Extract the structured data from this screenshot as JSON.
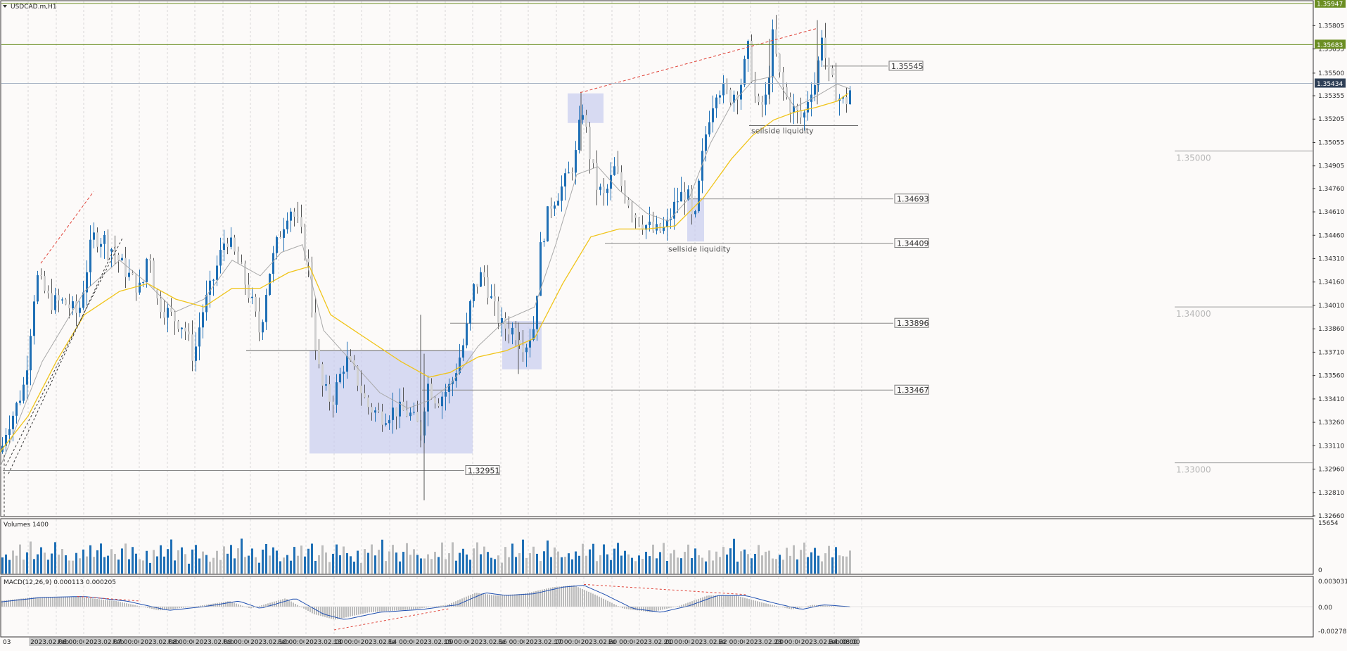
{
  "chart_data": [
    {
      "type": "candlestick",
      "symbol_label": "USDCAD.m,H1",
      "ylim": [
        1.3266,
        1.3596
      ],
      "y_ticks": [
        "1.35805",
        "1.35655",
        "1.35500",
        "1.35355",
        "1.35205",
        "1.35055",
        "1.34905",
        "1.34760",
        "1.34610",
        "1.34460",
        "1.34310",
        "1.34160",
        "1.34010",
        "1.33860",
        "1.33710",
        "1.33560",
        "1.33410",
        "1.33260",
        "1.33110",
        "1.32960",
        "1.32810",
        "1.32660"
      ],
      "x_dates": [
        "03",
        "2023.02.06 00:00",
        "Feb",
        "2023.02.07 00:00",
        "Feb",
        "2023.02.08 00:00",
        "Feb",
        "2023.02.09 00:00",
        "Feb",
        "2023.02.10 00:00",
        "Feb",
        "2023.02.13 00:00",
        ":00",
        "2023.02.14 00:00",
        "Fe",
        "2023.02.15 00:00",
        ":00",
        "2023.02.16 00:00",
        "Fe",
        "2023.02.17 00:00",
        ":00",
        "2023.02.20 00:00",
        "Fe",
        "2023.02.21 00:00",
        ":00",
        "2023.02.22 00:00",
        "Fe",
        "2023.02.23 00:00",
        ":00",
        "2023.02.24 00:00",
        "Feb 08:00"
      ],
      "price_path": [
        [
          0,
          1.3307
        ],
        [
          8,
          1.3323
        ],
        [
          20,
          1.3334
        ],
        [
          34,
          1.3352
        ],
        [
          50,
          1.342
        ],
        [
          70,
          1.3403
        ],
        [
          90,
          1.3403
        ],
        [
          110,
          1.3395
        ],
        [
          130,
          1.3445
        ],
        [
          150,
          1.3443
        ],
        [
          170,
          1.3428
        ],
        [
          185,
          1.3418
        ],
        [
          200,
          1.341
        ],
        [
          210,
          1.344
        ],
        [
          220,
          1.3405
        ],
        [
          240,
          1.3395
        ],
        [
          260,
          1.3388
        ],
        [
          274,
          1.3367
        ],
        [
          285,
          1.3395
        ],
        [
          300,
          1.3415
        ],
        [
          320,
          1.3446
        ],
        [
          340,
          1.3425
        ],
        [
          355,
          1.3405
        ],
        [
          368,
          1.3383
        ],
        [
          380,
          1.342
        ],
        [
          395,
          1.3445
        ],
        [
          410,
          1.3465
        ],
        [
          425,
          1.345
        ],
        [
          437,
          1.3426
        ],
        [
          445,
          1.3383
        ],
        [
          455,
          1.335
        ],
        [
          470,
          1.3339
        ],
        [
          490,
          1.3367
        ],
        [
          505,
          1.3355
        ],
        [
          520,
          1.3337
        ],
        [
          540,
          1.333
        ],
        [
          560,
          1.3334
        ],
        [
          580,
          1.3332
        ],
        [
          598,
          1.332
        ],
        [
          605,
          1.3352
        ],
        [
          620,
          1.334
        ],
        [
          640,
          1.335
        ],
        [
          660,
          1.338
        ],
        [
          670,
          1.341
        ],
        [
          685,
          1.3422
        ],
        [
          700,
          1.34
        ],
        [
          712,
          1.3388
        ],
        [
          730,
          1.3385
        ],
        [
          745,
          1.3375
        ],
        [
          758,
          1.3388
        ],
        [
          766,
          1.3435
        ],
        [
          780,
          1.3465
        ],
        [
          795,
          1.3475
        ],
        [
          808,
          1.3485
        ],
        [
          818,
          1.3499
        ],
        [
          826,
          1.353
        ],
        [
          836,
          1.35
        ],
        [
          846,
          1.3478
        ],
        [
          858,
          1.347
        ],
        [
          872,
          1.3488
        ],
        [
          885,
          1.3475
        ],
        [
          900,
          1.346
        ],
        [
          915,
          1.3453
        ],
        [
          930,
          1.3448
        ],
        [
          945,
          1.345
        ],
        [
          960,
          1.3468
        ],
        [
          975,
          1.3475
        ],
        [
          985,
          1.3448
        ],
        [
          995,
          1.349
        ],
        [
          1005,
          1.352
        ],
        [
          1018,
          1.3542
        ],
        [
          1035,
          1.3535
        ],
        [
          1050,
          1.354
        ],
        [
          1062,
          1.3565
        ],
        [
          1075,
          1.3525
        ],
        [
          1090,
          1.3535
        ],
        [
          1095,
          1.3578
        ],
        [
          1108,
          1.3545
        ],
        [
          1120,
          1.353
        ],
        [
          1140,
          1.352
        ],
        [
          1150,
          1.354
        ],
        [
          1160,
          1.3545
        ],
        [
          1166,
          1.358
        ],
        [
          1175,
          1.355
        ],
        [
          1190,
          1.3535
        ],
        [
          1200,
          1.353
        ],
        [
          1210,
          1.3543
        ]
      ],
      "ma_fast_path": [
        [
          0,
          1.3297
        ],
        [
          60,
          1.3365
        ],
        [
          120,
          1.341
        ],
        [
          170,
          1.343
        ],
        [
          210,
          1.3415
        ],
        [
          250,
          1.3397
        ],
        [
          290,
          1.3405
        ],
        [
          330,
          1.343
        ],
        [
          370,
          1.342
        ],
        [
          400,
          1.3435
        ],
        [
          430,
          1.344
        ],
        [
          460,
          1.3385
        ],
        [
          500,
          1.3365
        ],
        [
          540,
          1.3345
        ],
        [
          580,
          1.3335
        ],
        [
          610,
          1.334
        ],
        [
          640,
          1.335
        ],
        [
          680,
          1.3375
        ],
        [
          720,
          1.3392
        ],
        [
          760,
          1.34
        ],
        [
          790,
          1.344
        ],
        [
          820,
          1.3485
        ],
        [
          850,
          1.349
        ],
        [
          880,
          1.3475
        ],
        [
          920,
          1.346
        ],
        [
          950,
          1.3455
        ],
        [
          980,
          1.347
        ],
        [
          1010,
          1.3505
        ],
        [
          1040,
          1.353
        ],
        [
          1070,
          1.3545
        ],
        [
          1100,
          1.3548
        ],
        [
          1130,
          1.3528
        ],
        [
          1160,
          1.3535
        ],
        [
          1190,
          1.3543
        ],
        [
          1208,
          1.354
        ]
      ],
      "ma_slow_path": [
        [
          0,
          1.3307
        ],
        [
          40,
          1.333
        ],
        [
          80,
          1.3365
        ],
        [
          120,
          1.3395
        ],
        [
          170,
          1.341
        ],
        [
          210,
          1.3415
        ],
        [
          250,
          1.3405
        ],
        [
          290,
          1.34
        ],
        [
          330,
          1.3412
        ],
        [
          370,
          1.3412
        ],
        [
          410,
          1.3422
        ],
        [
          440,
          1.3426
        ],
        [
          470,
          1.3395
        ],
        [
          520,
          1.338
        ],
        [
          570,
          1.3365
        ],
        [
          610,
          1.3355
        ],
        [
          640,
          1.3358
        ],
        [
          680,
          1.3368
        ],
        [
          720,
          1.3372
        ],
        [
          760,
          1.338
        ],
        [
          800,
          1.3415
        ],
        [
          840,
          1.3445
        ],
        [
          880,
          1.345
        ],
        [
          920,
          1.345
        ],
        [
          960,
          1.3452
        ],
        [
          1000,
          1.347
        ],
        [
          1040,
          1.3495
        ],
        [
          1070,
          1.351
        ],
        [
          1100,
          1.352
        ],
        [
          1130,
          1.3525
        ],
        [
          1160,
          1.3528
        ],
        [
          1190,
          1.3532
        ],
        [
          1206,
          1.3537
        ]
      ],
      "price_levels": [
        {
          "label": "1.35545",
          "value": 1.35545
        },
        {
          "label": "1.34693",
          "value": 1.34693
        },
        {
          "label": "1.34409",
          "value": 1.34409
        },
        {
          "label": "1.33896",
          "value": 1.33896
        },
        {
          "label": "1.33467",
          "value": 1.33467
        },
        {
          "label": "1.32951",
          "value": 1.32951
        }
      ],
      "right_axis_tags": [
        {
          "label": "1.35947",
          "value": 1.35947,
          "color": "#6b8e23"
        },
        {
          "label": "1.35683",
          "value": 1.35683,
          "color": "#6b8e23"
        },
        {
          "label": "1.35434",
          "value": 1.35434,
          "color": "#2f3f56"
        }
      ],
      "round_levels": [
        "1.35000",
        "1.34000",
        "1.33000"
      ],
      "annotations": [
        "sellside liquidity",
        "sellside liquidity"
      ],
      "colors": {
        "bull": "#1f6fb5",
        "bear": "#d0d0d0",
        "ma_fast": "#a8a8a8",
        "ma_slow": "#f0c419",
        "zone": "#c8ccf0",
        "trend": "#e0443a"
      }
    },
    {
      "type": "bar",
      "title": "Volumes 1400",
      "y_ticks": [
        "15654",
        "0"
      ],
      "volume_pattern": [
        6,
        9,
        5,
        11,
        8,
        13,
        7,
        10,
        15,
        6,
        9,
        12,
        8,
        5,
        10,
        14,
        7,
        11,
        9,
        6
      ]
    },
    {
      "type": "line",
      "title": "MACD(12,26,9) 0.000113 0.000205",
      "y_ticks": [
        "0.003031",
        "0.00",
        "-0.002787"
      ],
      "macd_path": [
        [
          0,
          0.0005
        ],
        [
          60,
          0.001
        ],
        [
          120,
          0.0011
        ],
        [
          180,
          0.0006
        ],
        [
          240,
          -0.0004
        ],
        [
          290,
          0.0
        ],
        [
          340,
          0.0006
        ],
        [
          370,
          -0.0002
        ],
        [
          420,
          0.0009
        ],
        [
          460,
          -0.0008
        ],
        [
          490,
          -0.0014
        ],
        [
          540,
          -0.0006
        ],
        [
          600,
          -0.0003
        ],
        [
          650,
          0.0002
        ],
        [
          690,
          0.0015
        ],
        [
          720,
          0.0012
        ],
        [
          760,
          0.0014
        ],
        [
          800,
          0.0021
        ],
        [
          830,
          0.0023
        ],
        [
          860,
          0.0013
        ],
        [
          900,
          -0.0002
        ],
        [
          940,
          -0.0006
        ],
        [
          980,
          0.0001
        ],
        [
          1020,
          0.0012
        ],
        [
          1060,
          0.0012
        ],
        [
          1100,
          0.0004
        ],
        [
          1140,
          -0.0003
        ],
        [
          1170,
          0.0002
        ],
        [
          1208,
          0.0
        ]
      ]
    }
  ]
}
